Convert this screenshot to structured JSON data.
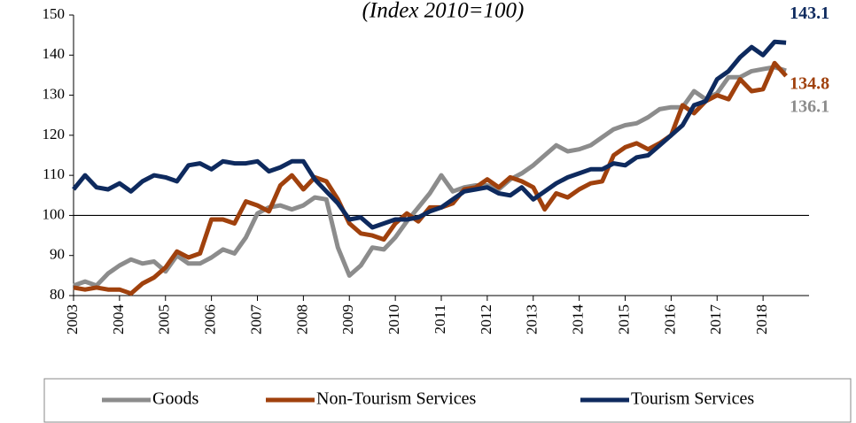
{
  "chart_data": {
    "type": "line",
    "title": "(Index 2010=100)",
    "x": [
      2003,
      2003.25,
      2003.5,
      2003.75,
      2004,
      2004.25,
      2004.5,
      2004.75,
      2005,
      2005.25,
      2005.5,
      2005.75,
      2006,
      2006.25,
      2006.5,
      2006.75,
      2007,
      2007.25,
      2007.5,
      2007.75,
      2008,
      2008.25,
      2008.5,
      2008.75,
      2009,
      2009.25,
      2009.5,
      2009.75,
      2010,
      2010.25,
      2010.5,
      2010.75,
      2011,
      2011.25,
      2011.5,
      2011.75,
      2012,
      2012.25,
      2012.5,
      2012.75,
      2013,
      2013.25,
      2013.5,
      2013.75,
      2014,
      2014.25,
      2014.5,
      2014.75,
      2015,
      2015.25,
      2015.5,
      2015.75,
      2016,
      2016.25,
      2016.5,
      2016.75,
      2017,
      2017.25,
      2017.5,
      2017.75,
      2018,
      2018.25,
      2018.5
    ],
    "series": [
      {
        "name": "Goods",
        "color": "#8c8c8c",
        "values": [
          82.5,
          83.5,
          82.5,
          85.5,
          87.5,
          89,
          88,
          88.5,
          86,
          90,
          88,
          88,
          89.5,
          91.5,
          90.5,
          94.5,
          100.5,
          102,
          102.5,
          101.5,
          102.5,
          104.5,
          104,
          92,
          85,
          87.5,
          92,
          91.5,
          94.5,
          98.5,
          102,
          105.5,
          110,
          106,
          107,
          107.5,
          107.5,
          106.5,
          109,
          110.5,
          112.5,
          115,
          117.5,
          116,
          116.5,
          117.5,
          119.5,
          121.5,
          122.5,
          123,
          124.5,
          126.5,
          127,
          127,
          131,
          129,
          130.5,
          134.5,
          134.5,
          136,
          136.5,
          137,
          136.1
        ]
      },
      {
        "name": "Non-Tourism Services",
        "color": "#a0410d",
        "values": [
          82,
          81.5,
          82,
          81.5,
          81.5,
          80.5,
          83,
          84.5,
          87,
          91,
          89.5,
          90.5,
          99,
          99,
          98,
          103.5,
          102.5,
          101,
          107.5,
          110,
          106.5,
          109.5,
          108.5,
          104,
          98,
          95.5,
          95,
          94,
          98,
          100.5,
          98.5,
          102,
          102,
          103,
          106.5,
          107,
          109,
          107,
          109.5,
          108.5,
          107,
          101.5,
          105.5,
          104.5,
          106.5,
          108,
          108.5,
          115,
          117,
          118,
          116.5,
          118,
          120,
          127.5,
          125.5,
          128.5,
          130,
          129,
          134,
          131,
          131.5,
          138,
          134.8
        ]
      },
      {
        "name": "Tourism Services",
        "color": "#0e2a5e",
        "values": [
          106.5,
          110,
          107,
          106.5,
          108,
          106,
          108.5,
          110,
          109.5,
          108.5,
          112.5,
          113,
          111.5,
          113.5,
          113,
          113,
          113.5,
          111,
          112,
          113.5,
          113.5,
          109,
          106,
          103,
          99,
          99.5,
          97,
          98,
          99,
          99,
          99.5,
          101,
          102,
          104,
          106,
          106.5,
          107,
          105.5,
          105,
          107,
          104,
          106,
          108,
          109.5,
          110.5,
          111.5,
          111.5,
          113,
          112.5,
          114.5,
          115,
          117.5,
          120,
          122.5,
          127.5,
          128.5,
          134,
          136,
          139.5,
          142,
          140,
          143.3,
          143.1
        ]
      }
    ],
    "xlim": [
      2003,
      2019
    ],
    "xticks": [
      2003,
      2004,
      2005,
      2006,
      2007,
      2008,
      2009,
      2010,
      2011,
      2012,
      2013,
      2014,
      2015,
      2016,
      2017,
      2018
    ],
    "ylim": [
      80,
      150
    ],
    "yticks": [
      80,
      90,
      100,
      110,
      120,
      130,
      140,
      150
    ],
    "reference_line": 100,
    "legend": "bottom"
  }
}
